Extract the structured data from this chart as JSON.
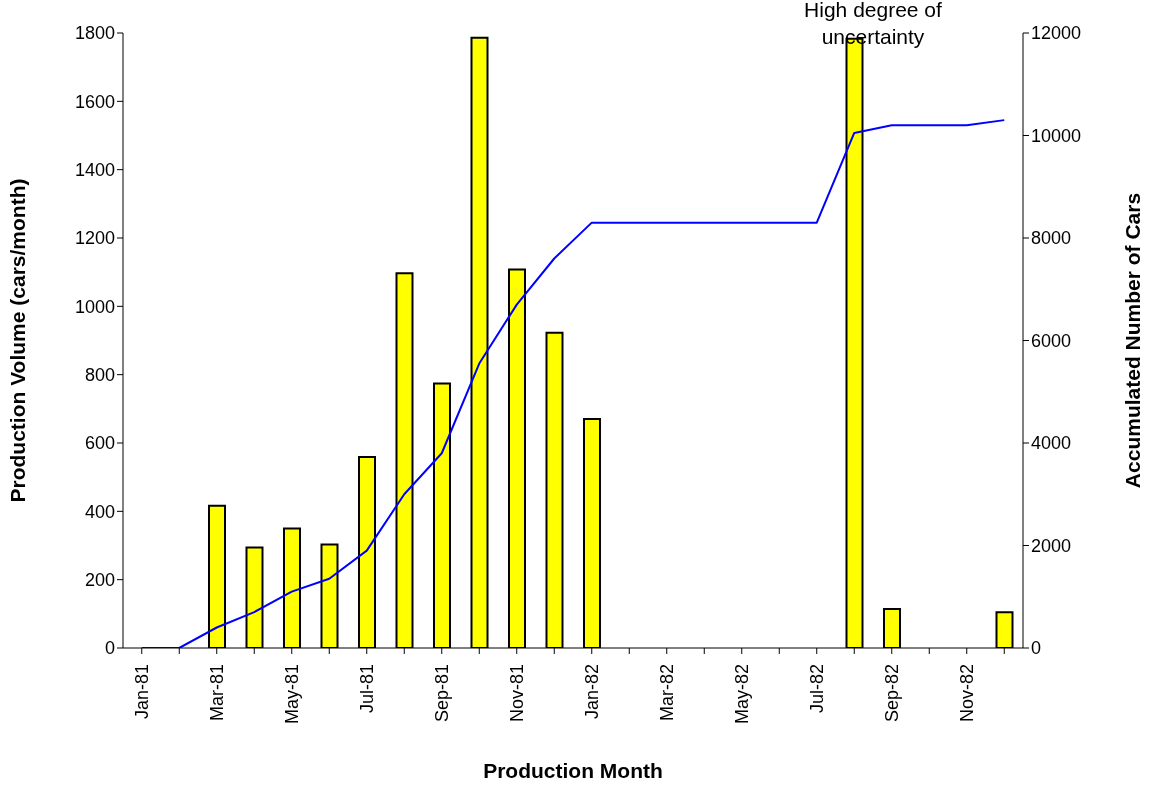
{
  "chart_data": {
    "type": "bar",
    "xlabel": "Production Month",
    "ylabel": "Production Volume (cars/month)",
    "y2label": "Accumulated Number of Cars",
    "annotations": [
      "High degree of uncertainty"
    ],
    "categories": [
      "Jan-81",
      null,
      "Mar-81",
      null,
      "May-81",
      null,
      "Jul-81",
      null,
      "Sep-81",
      null,
      "Nov-81",
      null,
      "Jan-82",
      null,
      "Mar-82",
      null,
      "May-82",
      null,
      "Jul-82",
      null,
      "Sep-82",
      null,
      "Nov-82",
      null
    ],
    "series": [
      {
        "color": "#ffff00",
        "values": [
          0,
          0,
          416,
          294,
          350,
          303,
          559,
          1097,
          774,
          1786,
          1108,
          923,
          670,
          0,
          0,
          0,
          0,
          0,
          0,
          1783,
          114,
          0,
          0,
          105
        ]
      },
      {
        "type": "line",
        "axis": "y2",
        "color": "#0000ff",
        "values": [
          0,
          0,
          400,
          700,
          1100,
          1350,
          1900,
          3000,
          3800,
          5550,
          6700,
          7600,
          8300,
          8300,
          8300,
          8300,
          8300,
          8300,
          8300,
          10050,
          10200,
          10200,
          10200,
          10300
        ]
      }
    ],
    "ylim": [
      0,
      1800
    ],
    "yticks": [
      0,
      200,
      400,
      600,
      800,
      1000,
      1200,
      1400,
      1600,
      1800
    ],
    "y2lim": [
      0,
      12000
    ],
    "y2ticks": [
      0,
      2000,
      4000,
      6000,
      8000,
      10000,
      12000
    ]
  }
}
